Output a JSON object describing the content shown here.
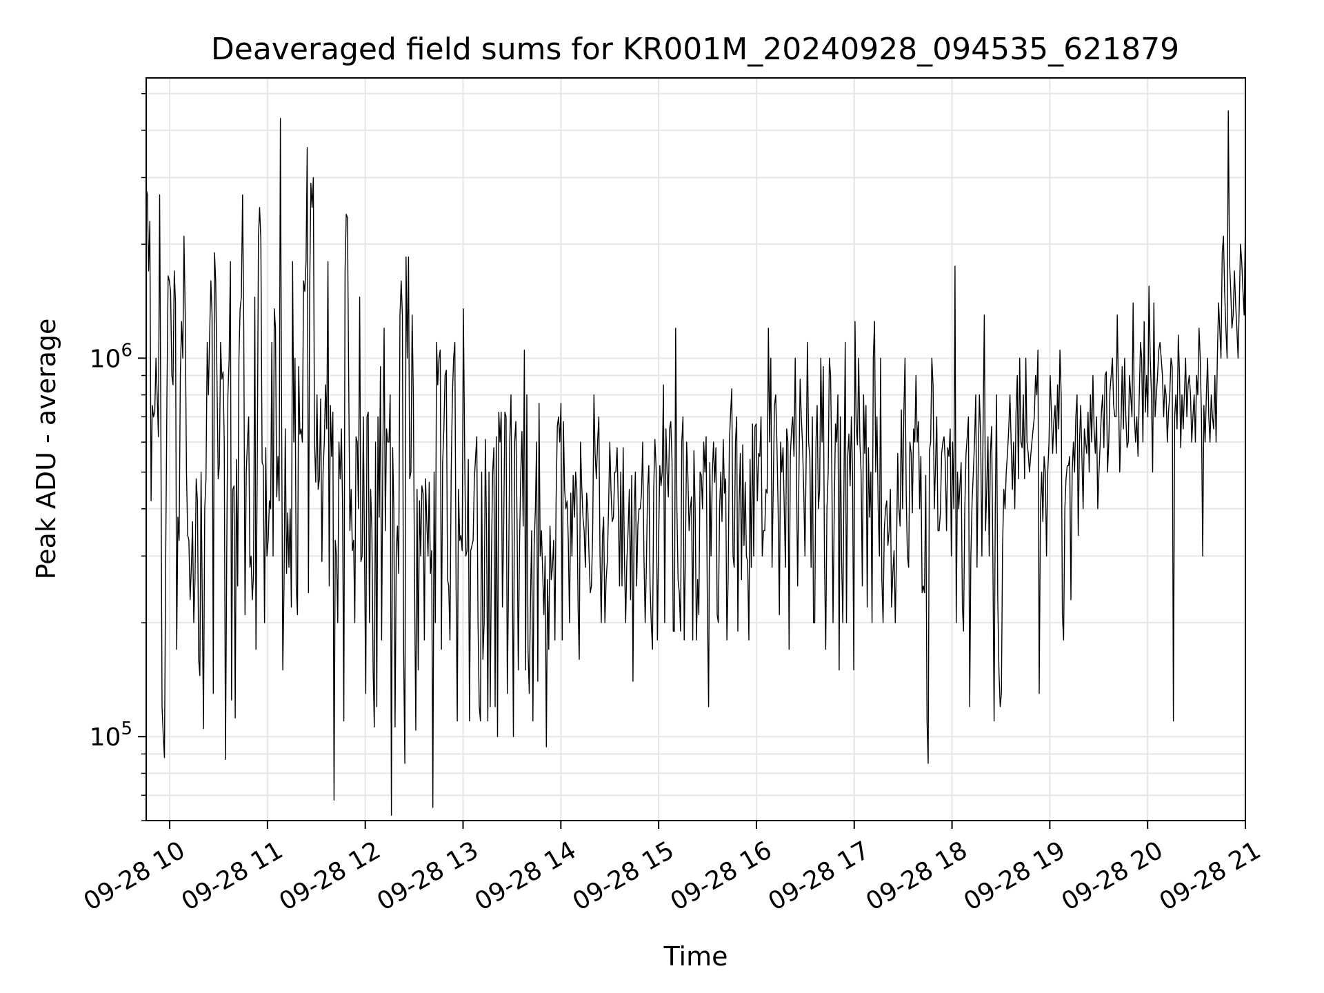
{
  "chart_data": {
    "type": "line",
    "title": "Deaveraged field sums for KR001M_20240928_094535_621879",
    "xlabel": "Time",
    "ylabel": "Peak ADU - average",
    "y_scale": "log",
    "ylim": [
      60000,
      5500000
    ],
    "xlim": [
      "2024-09-28 09:45:35",
      "2024-09-28 21:00:00"
    ],
    "grid": true,
    "line_color": "#000000",
    "x_ticks": [
      {
        "t": "2024-09-28 10:00",
        "label": "09-28 10"
      },
      {
        "t": "2024-09-28 11:00",
        "label": "09-28 11"
      },
      {
        "t": "2024-09-28 12:00",
        "label": "09-28 12"
      },
      {
        "t": "2024-09-28 13:00",
        "label": "09-28 13"
      },
      {
        "t": "2024-09-28 14:00",
        "label": "09-28 14"
      },
      {
        "t": "2024-09-28 15:00",
        "label": "09-28 15"
      },
      {
        "t": "2024-09-28 16:00",
        "label": "09-28 16"
      },
      {
        "t": "2024-09-28 17:00",
        "label": "09-28 17"
      },
      {
        "t": "2024-09-28 18:00",
        "label": "09-28 18"
      },
      {
        "t": "2024-09-28 19:00",
        "label": "09-28 19"
      },
      {
        "t": "2024-09-28 20:00",
        "label": "09-28 20"
      },
      {
        "t": "2024-09-28 21:00",
        "label": "09-28 21"
      }
    ],
    "y_ticks": [
      {
        "value": 100000,
        "base": "10",
        "exp": "5"
      },
      {
        "value": 1000000,
        "base": "10",
        "exp": "6"
      }
    ],
    "series": [
      {
        "x_start": "2024-09-28 09:45:35",
        "x_end": "2024-09-28 21:00:00",
        "values": [
          2800000,
          2700000,
          1700000,
          2300000,
          420000,
          750000,
          700000,
          720000,
          1000000,
          800000,
          620000,
          2700000,
          700000,
          120000,
          100000,
          88000,
          300000,
          800000,
          1650000,
          1600000,
          1500000,
          900000,
          850000,
          1700000,
          1400000,
          170000,
          380000,
          330000,
          900000,
          1250000,
          1000000,
          2100000,
          1300000,
          500000,
          340000,
          330000,
          230000,
          280000,
          370000,
          200000,
          260000,
          480000,
          420000,
          160000,
          145000,
          500000,
          220000,
          105000,
          400000,
          480000,
          1100000,
          800000,
          1150000,
          1600000,
          1300000,
          130000,
          1900000,
          1600000,
          900000,
          480000,
          520000,
          1100000,
          880000,
          920000,
          600000,
          87000,
          300000,
          800000,
          1000000,
          1800000,
          125000,
          450000,
          460000,
          112000,
          540000,
          250000,
          1000000,
          1350000,
          1450000,
          2700000,
          1200000,
          210000,
          500000,
          600000,
          700000,
          280000,
          300000,
          230000,
          270000,
          1450000,
          170000,
          500000,
          2100000,
          2500000,
          2050000,
          530000,
          520000,
          200000,
          580000,
          300000,
          330000,
          420000,
          400000,
          1100000,
          300000,
          1350000,
          1200000,
          430000,
          550000,
          420000,
          4300000,
          700000,
          150000,
          250000,
          650000,
          270000,
          390000,
          280000,
          400000,
          220000,
          1800000,
          600000,
          1000000,
          250000,
          210000,
          950000,
          630000,
          650000,
          600000,
          1600000,
          1500000,
          1800000,
          3600000,
          240000,
          1500000,
          2900000,
          2500000,
          3000000,
          600000,
          470000,
          800000,
          450000,
          480000,
          780000,
          290000,
          500000,
          600000,
          850000,
          650000,
          1800000,
          250000,
          750000,
          550000,
          720000,
          68000,
          330000,
          300000,
          200000,
          600000,
          480000,
          650000,
          400000,
          110000,
          1700000,
          2400000,
          2350000,
          850000,
          350000,
          450000,
          310000,
          330000,
          200000,
          620000,
          600000,
          400000,
          1450000,
          290000,
          300000,
          700000,
          290000,
          130000,
          700000,
          720000,
          200000,
          450000,
          350000,
          150000,
          106000,
          600000,
          120000,
          700000,
          380000,
          950000,
          180000,
          560000,
          1200000,
          350000,
          650000,
          600000,
          600000,
          800000,
          62000,
          580000,
          400000,
          106000,
          310000,
          360000,
          270000,
          1300000,
          1600000,
          1300000,
          170000,
          85000,
          1850000,
          1000000,
          1850000,
          480000,
          500000,
          1300000,
          800000,
          250000,
          104000,
          450000,
          150000,
          420000,
          300000,
          460000,
          440000,
          180000,
          480000,
          370000,
          300000,
          470000,
          270000,
          310000,
          65000,
          500000,
          200000,
          1100000,
          850000,
          1000000,
          1050000,
          170000,
          530000,
          650000,
          900000,
          930000,
          260000,
          250000,
          180000,
          500000,
          800000,
          1000000,
          1100000,
          250000,
          110000,
          450000,
          330000,
          340000,
          310000,
          1350000,
          600000,
          300000,
          310000,
          540000,
          110000,
          310000,
          320000,
          330000,
          480000,
          550000,
          620000,
          200000,
          120000,
          110000,
          500000,
          160000,
          200000,
          610000,
          350000,
          110000,
          500000,
          120000,
          300000,
          500000,
          580000,
          120000,
          620000,
          100000,
          720000,
          600000,
          720000,
          220000,
          350000,
          720000,
          700000,
          130000,
          250000,
          600000,
          800000,
          330000,
          100000,
          600000,
          680000,
          370000,
          150000,
          320000,
          490000,
          640000,
          360000,
          1050000,
          150000,
          800000,
          170000,
          130000,
          230000,
          350000,
          110000,
          320000,
          400000,
          600000,
          140000,
          760000,
          300000,
          350000,
          270000,
          210000,
          300000,
          94000,
          260000,
          170000,
          360000,
          260000,
          280000,
          330000,
          180000,
          420000,
          660000,
          700000,
          600000,
          760000,
          180000,
          680000,
          450000,
          400000,
          420000,
          330000,
          200000,
          440000,
          300000,
          490000,
          380000,
          500000,
          450000,
          220000,
          160000,
          600000,
          460000,
          380000,
          350000,
          280000,
          440000,
          400000,
          300000,
          240000,
          250000,
          350000,
          800000,
          560000,
          480000,
          600000,
          700000,
          300000,
          200000,
          340000,
          380000,
          200000,
          260000,
          290000,
          400000,
          600000,
          450000,
          370000,
          380000,
          500000,
          500000,
          580000,
          400000,
          250000,
          500000,
          250000,
          580000,
          300000,
          200000,
          290000,
          350000,
          450000,
          230000,
          490000,
          140000,
          400000,
          500000,
          250000,
          360000,
          400000,
          400000,
          440000,
          600000,
          300000,
          200000,
          280000,
          450000,
          520000,
          250000,
          200000,
          170000,
          450000,
          610000,
          510000,
          180000,
          320000,
          520000,
          460000,
          500000,
          850000,
          200000,
          650000,
          500000,
          430000,
          650000,
          680000,
          540000,
          190000,
          190000,
          1200000,
          400000,
          260000,
          240000,
          190000,
          600000,
          700000,
          180000,
          310000,
          600000,
          490000,
          350000,
          400000,
          430000,
          180000,
          570000,
          400000,
          180000,
          260000,
          210000,
          500000,
          490000,
          400000,
          600000,
          500000,
          620000,
          220000,
          120000,
          530000,
          300000,
          490000,
          600000,
          470000,
          580000,
          210000,
          200000,
          400000,
          500000,
          370000,
          610000,
          440000,
          480000,
          180000,
          260000,
          600000,
          710000,
          830000,
          300000,
          280000,
          600000,
          700000,
          190000,
          410000,
          560000,
          260000,
          590000,
          320000,
          470000,
          300000,
          290000,
          180000,
          540000,
          280000,
          670000,
          300000,
          660000,
          670000,
          420000,
          560000,
          550000,
          700000,
          300000,
          350000,
          350000,
          450000,
          440000,
          1200000,
          600000,
          1000000,
          280000,
          450000,
          750000,
          800000,
          600000,
          400000,
          210000,
          600000,
          500000,
          580000,
          400000,
          280000,
          650000,
          600000,
          170000,
          550000,
          650000,
          700000,
          550000,
          1000000,
          500000,
          250000,
          480000,
          880000,
          700000,
          590000,
          440000,
          300000,
          550000,
          1100000,
          600000,
          550000,
          280000,
          700000,
          200000,
          200000,
          600000,
          750000,
          400000,
          450000,
          1000000,
          600000,
          950000,
          300000,
          170000,
          400000,
          500000,
          1000000,
          900000,
          500000,
          200000,
          400000,
          670000,
          600000,
          800000,
          150000,
          700000,
          300000,
          200000,
          500000,
          1100000,
          200000,
          550000,
          630000,
          460000,
          700000,
          500000,
          150000,
          1250000,
          670000,
          590000,
          1000000,
          600000,
          500000,
          250000,
          800000,
          560000,
          750000,
          220000,
          580000,
          380000,
          500000,
          200000,
          1000000,
          1250000,
          500000,
          700000,
          400000,
          300000,
          1000000,
          260000,
          200000,
          350000,
          400000,
          420000,
          320000,
          350000,
          450000,
          220000,
          270000,
          310000,
          200000,
          300000,
          560000,
          400000,
          360000,
          730000,
          400000,
          700000,
          1000000,
          430000,
          300000,
          280000,
          600000,
          560000,
          390000,
          650000,
          600000,
          900000,
          600000,
          680000,
          400000,
          550000,
          240000,
          250000,
          240000,
          490000,
          110000,
          85000,
          570000,
          600000,
          1000000,
          850000,
          400000,
          520000,
          700000,
          350000,
          350000,
          390000,
          560000,
          600000,
          620000,
          530000,
          350000,
          580000,
          550000,
          650000,
          300000,
          600000,
          400000,
          1750000,
          200000,
          500000,
          400000,
          460000,
          530000,
          220000,
          190000,
          400000,
          560000,
          620000,
          700000,
          120000,
          300000,
          420000,
          500000,
          600000,
          800000,
          280000,
          530000,
          800000,
          620000,
          300000,
          650000,
          1300000,
          350000,
          450000,
          620000,
          300000,
          560000,
          660000,
          300000,
          110000,
          400000,
          800000,
          230000,
          150000,
          120000,
          130000,
          320000,
          450000,
          400000,
          500000,
          560000,
          650000,
          800000,
          600000,
          450000,
          600000,
          400000,
          720000,
          900000,
          480000,
          1000000,
          600000,
          580000,
          800000,
          480000,
          1000000,
          600000,
          560000,
          500000,
          550000,
          600000,
          650000,
          700000,
          900000,
          800000,
          1050000,
          130000,
          400000,
          500000,
          370000,
          550000,
          500000,
          300000,
          500000,
          600000,
          900000,
          720000,
          560000,
          680000,
          750000,
          560000,
          850000,
          650000,
          1050000,
          800000,
          210000,
          180000,
          400000,
          480000,
          520000,
          520000,
          550000,
          230000,
          500000,
          600000,
          500000,
          700000,
          800000,
          340000,
          600000,
          750000,
          550000,
          400000,
          650000,
          600000,
          560000,
          720000,
          500000,
          800000,
          600000,
          900000,
          650000,
          560000,
          700000,
          400000,
          500000,
          600000,
          720000,
          800000,
          580000,
          900000,
          920000,
          500000,
          600000,
          820000,
          900000,
          1000000,
          750000,
          700000,
          700000,
          1300000,
          800000,
          500000,
          650000,
          950000,
          650000,
          1000000,
          700000,
          580000,
          600000,
          900000,
          800000,
          700000,
          1400000,
          700000,
          600000,
          700000,
          550000,
          800000,
          1100000,
          1000000,
          600000,
          1250000,
          720000,
          900000,
          700000,
          1550000,
          1000000,
          800000,
          500000,
          1400000,
          700000,
          800000,
          900000,
          1050000,
          1100000,
          1000000,
          900000,
          700000,
          850000,
          800000,
          600000,
          720000,
          800000,
          1000000,
          950000,
          110000,
          700000,
          800000,
          650000,
          1150000,
          900000,
          580000,
          800000,
          650000,
          800000,
          1000000,
          700000,
          850000,
          900000,
          800000,
          600000,
          700000,
          800000,
          600000,
          900000,
          800000,
          1200000,
          1000000,
          700000,
          300000,
          750000,
          600000,
          800000,
          1000000,
          700000,
          600000,
          800000,
          700000,
          650000,
          900000,
          600000,
          1000000,
          1400000,
          1200000,
          1000000,
          1900000,
          2100000,
          1500000,
          1200000,
          1000000,
          4500000,
          1800000,
          1500000,
          1200000,
          1300000,
          1700000,
          1400000,
          1200000,
          1000000,
          1400000,
          2000000,
          1800000,
          1500000,
          1300000,
          2300000
        ]
      }
    ]
  }
}
